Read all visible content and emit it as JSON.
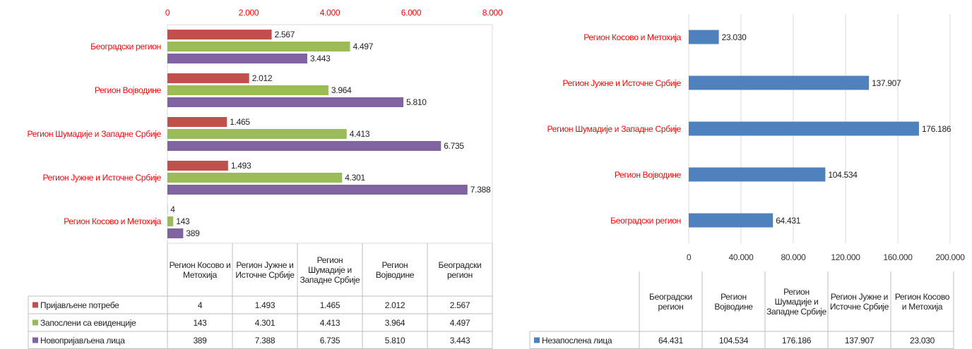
{
  "chart_data": [
    {
      "type": "bar",
      "orientation": "horizontal",
      "axis_position": "top",
      "grid": false,
      "tick_color": "#ff0000",
      "category_color": "#ff0000",
      "categories": [
        "Београдски регион",
        "Регион Војводине",
        "Регион Шумадије и Западне Србије",
        "Регион Јужне и Источне Србије",
        "Регион Косово и Метохија"
      ],
      "series": [
        {
          "name": "Пријављене потребе",
          "color": "#c0504d",
          "values": [
            2567,
            2012,
            1465,
            1493,
            4
          ],
          "value_labels": [
            "2.567",
            "2.012",
            "1.465",
            "1.493",
            "4"
          ]
        },
        {
          "name": "Запослени са евиденције",
          "color": "#9bbb59",
          "values": [
            4497,
            3964,
            4413,
            4301,
            143
          ],
          "value_labels": [
            "4.497",
            "3.964",
            "4.413",
            "4.301",
            "143"
          ]
        },
        {
          "name": "Новопријављена лица",
          "color": "#8064a2",
          "values": [
            3443,
            5810,
            6735,
            7388,
            389
          ],
          "value_labels": [
            "3.443",
            "5.810",
            "6.735",
            "7.388",
            "389"
          ]
        }
      ],
      "xlim": [
        0,
        8000
      ],
      "xticks": [
        0,
        {
          "value": 2000,
          "label": "2.000"
        },
        {
          "value": 4000,
          "label": "4.000"
        },
        {
          "value": 6000,
          "label": "6.000"
        },
        {
          "value": 8000,
          "label": "8.000"
        }
      ]
    },
    {
      "type": "bar",
      "orientation": "horizontal",
      "axis_position": "bottom",
      "grid": true,
      "tick_color": "#333333",
      "category_color": "#ff0000",
      "categories": [
        "Регион Косово и Метохија",
        "Регион Јужне и Источне Србије",
        "Регион Шумадије и Западне Србије",
        "Регион Војводине",
        "Београдски регион"
      ],
      "series": [
        {
          "name": "Незапослена лица",
          "color": "#4f81bd",
          "values": [
            23030,
            137907,
            176186,
            104534,
            64431
          ],
          "value_labels": [
            "23.030",
            "137.907",
            "176.186",
            "104.534",
            "64.431"
          ]
        }
      ],
      "xlim": [
        0,
        200000
      ],
      "xticks": [
        0,
        {
          "value": 40000,
          "label": "40.000"
        },
        {
          "value": 80000,
          "label": "80.000"
        },
        {
          "value": 120000,
          "label": "120.000"
        },
        {
          "value": 160000,
          "label": "160.000"
        },
        {
          "value": 200000,
          "label": "200.000"
        }
      ]
    }
  ]
}
